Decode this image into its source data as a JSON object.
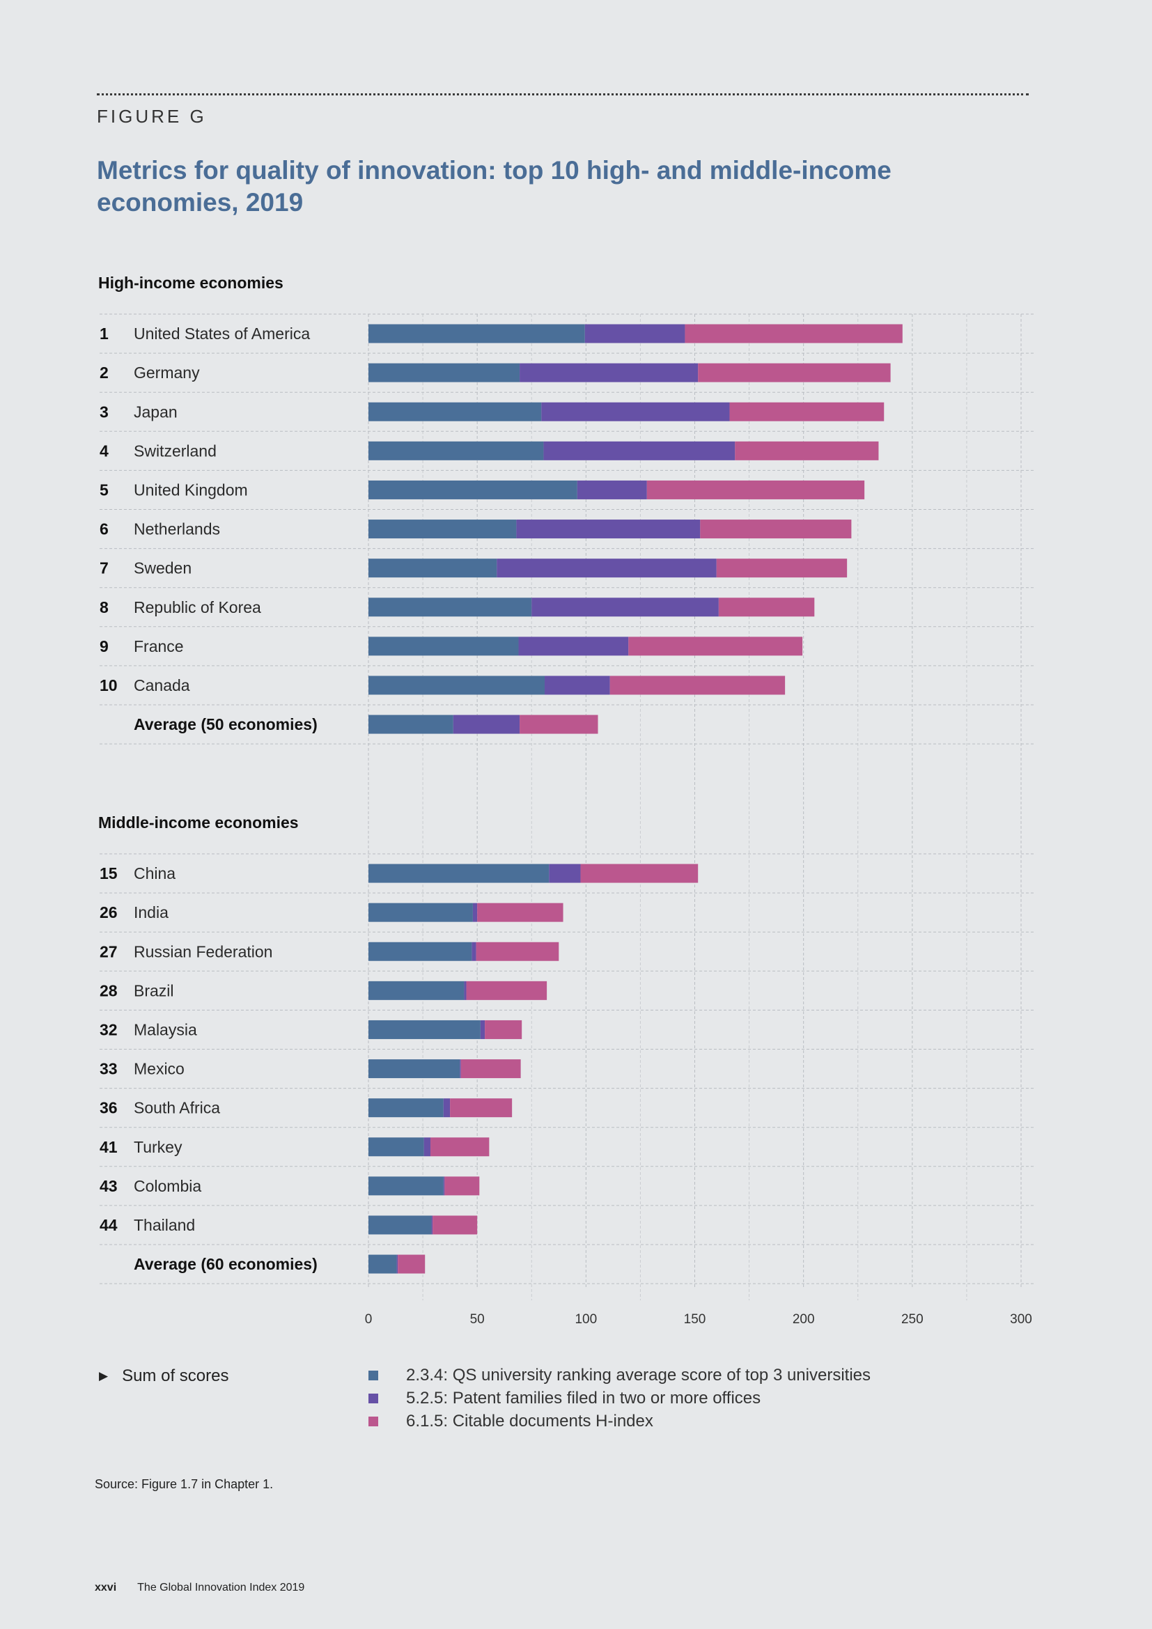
{
  "figure_label": "FIGURE G",
  "title": "Metrics for quality of innovation: top 10 high- and middle-income economies, 2019",
  "sum_label": "Sum of scores",
  "legend": [
    {
      "label": "2.3.4: QS university ranking average score of top 3 universities",
      "color": "#4a6f98"
    },
    {
      "label": "5.2.5: Patent families filed in two or more offices",
      "color": "#6651a6"
    },
    {
      "label": "6.1.5: Citable documents H-index",
      "color": "#bb578e"
    }
  ],
  "source": "Source: Figure 1.7 in Chapter 1.",
  "footer": {
    "page": "xxvi",
    "publication": "The Global Innovation Index 2019"
  },
  "chart_data": {
    "type": "bar",
    "orientation": "horizontal",
    "stacked": true,
    "xlim": [
      0,
      300
    ],
    "x_ticks": [
      0,
      50,
      100,
      150,
      200,
      250,
      300
    ],
    "series_names": [
      "2.3.4: QS university ranking average score of top 3 universities",
      "5.2.5: Patent families filed in two or more offices",
      "6.1.5: Citable documents H-index"
    ],
    "groups": [
      {
        "heading": "High-income economies",
        "rows": [
          {
            "rank": "1",
            "name": "United States of America",
            "values": [
              99.5,
              46,
              100
            ],
            "bold": false
          },
          {
            "rank": "2",
            "name": "Germany",
            "values": [
              69.5,
              82,
              88.5
            ],
            "bold": false
          },
          {
            "rank": "3",
            "name": "Japan",
            "values": [
              79.5,
              86.5,
              71
            ],
            "bold": false
          },
          {
            "rank": "4",
            "name": "Switzerland",
            "values": [
              80.5,
              88,
              66
            ],
            "bold": false
          },
          {
            "rank": "5",
            "name": "United Kingdom",
            "values": [
              96,
              32,
              100
            ],
            "bold": false
          },
          {
            "rank": "6",
            "name": "Netherlands",
            "values": [
              68,
              84.5,
              69.5
            ],
            "bold": false
          },
          {
            "rank": "7",
            "name": "Sweden",
            "values": [
              59,
              101,
              60
            ],
            "bold": false
          },
          {
            "rank": "8",
            "name": "Republic of Korea",
            "values": [
              75,
              86,
              44
            ],
            "bold": false
          },
          {
            "rank": "9",
            "name": "France",
            "values": [
              69,
              50.5,
              80
            ],
            "bold": false
          },
          {
            "rank": "10",
            "name": "Canada",
            "values": [
              81,
              30,
              80.5
            ],
            "bold": false
          },
          {
            "rank": "",
            "name": "Average (50 economies)",
            "values": [
              39,
              30.5,
              36
            ],
            "bold": true
          }
        ]
      },
      {
        "heading": "Middle-income economies",
        "rows": [
          {
            "rank": "15",
            "name": "China",
            "values": [
              83,
              14.5,
              54
            ],
            "bold": false
          },
          {
            "rank": "26",
            "name": "India",
            "values": [
              48,
              2,
              39.5
            ],
            "bold": false
          },
          {
            "rank": "27",
            "name": "Russian Federation",
            "values": [
              47.5,
              2,
              38
            ],
            "bold": false
          },
          {
            "rank": "28",
            "name": "Brazil",
            "values": [
              44,
              1,
              37
            ],
            "bold": false
          },
          {
            "rank": "32",
            "name": "Malaysia",
            "values": [
              51.5,
              2,
              17
            ],
            "bold": false
          },
          {
            "rank": "33",
            "name": "Mexico",
            "values": [
              42,
              0.5,
              27.5
            ],
            "bold": false
          },
          {
            "rank": "36",
            "name": "South Africa",
            "values": [
              34.5,
              3,
              28.5
            ],
            "bold": false
          },
          {
            "rank": "41",
            "name": "Turkey",
            "values": [
              25.5,
              3,
              27
            ],
            "bold": false
          },
          {
            "rank": "43",
            "name": "Colombia",
            "values": [
              34.5,
              0.5,
              16
            ],
            "bold": false
          },
          {
            "rank": "44",
            "name": "Thailand",
            "values": [
              29,
              0.5,
              20.5
            ],
            "bold": false
          },
          {
            "rank": "",
            "name": "Average (60 economies)",
            "values": [
              13,
              0.5,
              12.5
            ],
            "bold": true
          }
        ]
      }
    ]
  }
}
